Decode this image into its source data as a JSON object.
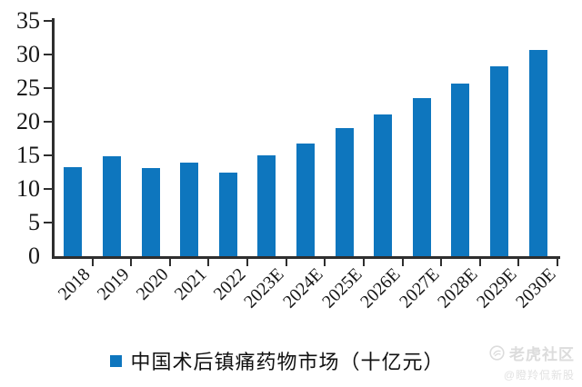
{
  "chart_data": {
    "type": "bar",
    "title": "",
    "categories": [
      "2018",
      "2019",
      "2020",
      "2021",
      "2022",
      "2023E",
      "2024E",
      "2025E",
      "2026E",
      "2027E",
      "2028E",
      "2029E",
      "2030E"
    ],
    "series": [
      {
        "name": "中国术后镇痛药物市场（十亿元）",
        "values": [
          13.2,
          14.8,
          13.1,
          13.9,
          12.5,
          15.0,
          16.8,
          19.0,
          21.1,
          23.5,
          25.7,
          28.3,
          30.7
        ],
        "color": "#0e76be"
      }
    ],
    "legend": {
      "label": "中国术后镇痛药物市场（十亿元）",
      "position": "bottom"
    },
    "xlabel": "",
    "ylabel": "",
    "ylim": [
      0,
      35
    ],
    "yticks": [
      0,
      5,
      10,
      15,
      20,
      25,
      30,
      35
    ],
    "grid": false,
    "x_tick_rotation": 45,
    "axis_color": "#2e2e2e"
  },
  "watermark": {
    "brand": "老虎社区",
    "handle": "@瞪羚侃新股"
  }
}
